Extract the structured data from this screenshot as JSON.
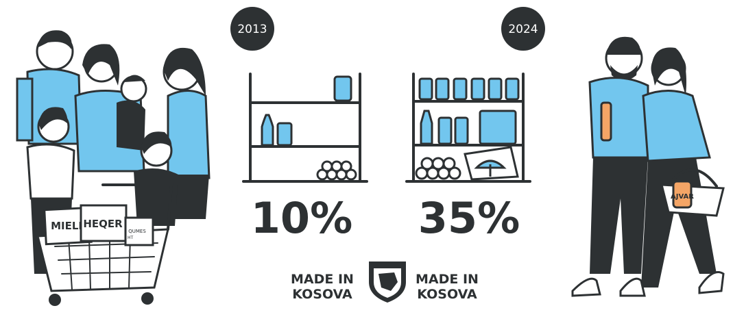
{
  "periods": [
    {
      "year": "2013",
      "share": "10%"
    },
    {
      "year": "2024",
      "share": "35%"
    }
  ],
  "badge": {
    "left": [
      "MADE IN",
      "KOSOVA"
    ],
    "right": [
      "MADE IN",
      "KOSOVA"
    ]
  },
  "products": {
    "flour": "MIELL",
    "sugar": "HEQER",
    "milk": "QUMES",
    "milk_tail": "HT",
    "ajvar": "AJVAR"
  }
}
